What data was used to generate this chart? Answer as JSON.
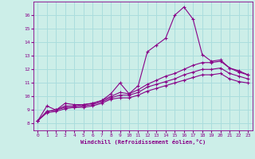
{
  "xlabel": "Windchill (Refroidissement éolien,°C)",
  "xlim": [
    -0.5,
    23.5
  ],
  "ylim": [
    7.5,
    17.0
  ],
  "bg_color": "#cceee8",
  "line_color": "#880088",
  "grid_color": "#aadddd",
  "curve1_x": [
    0,
    1,
    2,
    3,
    4,
    5,
    6,
    7,
    8,
    9,
    10,
    11,
    12,
    13,
    14,
    15,
    16,
    17,
    18,
    19,
    20,
    21,
    22,
    23
  ],
  "curve1_y": [
    8.2,
    9.3,
    9.0,
    9.5,
    9.4,
    9.4,
    9.5,
    9.7,
    10.2,
    11.0,
    10.2,
    10.8,
    13.3,
    13.8,
    14.3,
    16.0,
    16.6,
    15.7,
    13.1,
    12.6,
    12.7,
    12.1,
    11.8,
    11.6
  ],
  "curve2_x": [
    0,
    1,
    2,
    3,
    4,
    5,
    6,
    7,
    8,
    9,
    10,
    11,
    12,
    13,
    14,
    15,
    16,
    17,
    18,
    19,
    20,
    21,
    22,
    23
  ],
  "curve2_y": [
    8.2,
    8.9,
    9.0,
    9.3,
    9.3,
    9.4,
    9.5,
    9.7,
    10.0,
    10.3,
    10.2,
    10.5,
    10.9,
    11.2,
    11.5,
    11.7,
    12.0,
    12.3,
    12.5,
    12.5,
    12.6,
    12.1,
    11.9,
    11.6
  ],
  "curve3_x": [
    0,
    1,
    2,
    3,
    4,
    5,
    6,
    7,
    8,
    9,
    10,
    11,
    12,
    13,
    14,
    15,
    16,
    17,
    18,
    19,
    20,
    21,
    22,
    23
  ],
  "curve3_y": [
    8.2,
    8.9,
    9.0,
    9.2,
    9.2,
    9.3,
    9.4,
    9.6,
    9.9,
    10.1,
    10.1,
    10.3,
    10.7,
    10.9,
    11.1,
    11.3,
    11.6,
    11.8,
    12.0,
    12.0,
    12.1,
    11.7,
    11.5,
    11.3
  ],
  "curve4_x": [
    0,
    1,
    2,
    3,
    4,
    5,
    6,
    7,
    8,
    9,
    10,
    11,
    12,
    13,
    14,
    15,
    16,
    17,
    18,
    19,
    20,
    21,
    22,
    23
  ],
  "curve4_y": [
    8.2,
    8.8,
    8.9,
    9.1,
    9.2,
    9.2,
    9.3,
    9.5,
    9.8,
    9.9,
    9.9,
    10.1,
    10.4,
    10.6,
    10.8,
    11.0,
    11.2,
    11.4,
    11.6,
    11.6,
    11.7,
    11.3,
    11.1,
    11.0
  ],
  "yticks": [
    8,
    9,
    10,
    11,
    12,
    13,
    14,
    15,
    16
  ],
  "xticks": [
    0,
    1,
    2,
    3,
    4,
    5,
    6,
    7,
    8,
    9,
    10,
    11,
    12,
    13,
    14,
    15,
    16,
    17,
    18,
    19,
    20,
    21,
    22,
    23
  ]
}
